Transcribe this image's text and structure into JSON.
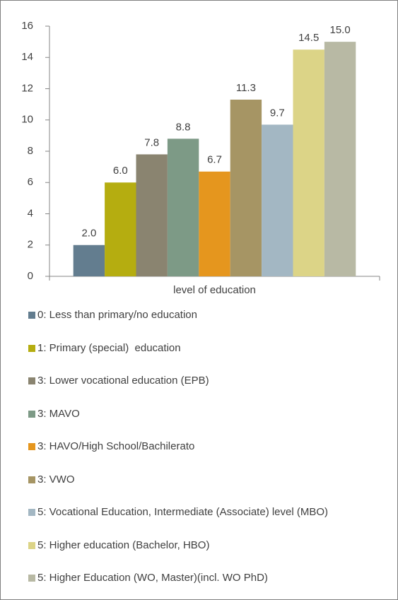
{
  "chart_data": {
    "type": "bar",
    "categories": [
      "level of education"
    ],
    "ylim": [
      0,
      16
    ],
    "yticks": [
      0,
      2,
      4,
      6,
      8,
      10,
      12,
      14,
      16
    ],
    "grid": false,
    "legend": "bottom",
    "series": [
      {
        "name": "0: Less than primary/no education",
        "color": "#637d8f",
        "values": [
          2.0
        ],
        "value_labels": [
          "2.0"
        ]
      },
      {
        "name": "1: Primary (special)  education",
        "color": "#b5ad10",
        "values": [
          6.0
        ],
        "value_labels": [
          "6.0"
        ]
      },
      {
        "name": "3: Lower vocational education (EPB)",
        "color": "#8a8470",
        "values": [
          7.8
        ],
        "value_labels": [
          "7.8"
        ]
      },
      {
        "name": "3: MAVO",
        "color": "#7d9a86",
        "values": [
          8.8
        ],
        "value_labels": [
          "8.8"
        ]
      },
      {
        "name": "3: HAVO/High School/Bachilerato",
        "color": "#e5961e",
        "values": [
          6.7
        ],
        "value_labels": [
          "6.7"
        ]
      },
      {
        "name": "3: VWO",
        "color": "#a69564",
        "values": [
          11.3
        ],
        "value_labels": [
          "11.3"
        ]
      },
      {
        "name": "5: Vocational Education, Intermediate (Associate) level (MBO)",
        "color": "#a3b7c3",
        "values": [
          9.7
        ],
        "value_labels": [
          "9.7"
        ]
      },
      {
        "name": "5: Higher education (Bachelor, HBO)",
        "color": "#dcd487",
        "values": [
          14.5
        ],
        "value_labels": [
          "14.5"
        ]
      },
      {
        "name": "5: Higher Education (WO, Master)(incl. WO PhD)",
        "color": "#b8b9a4",
        "values": [
          15.0
        ],
        "value_labels": [
          "15.0"
        ]
      }
    ]
  }
}
